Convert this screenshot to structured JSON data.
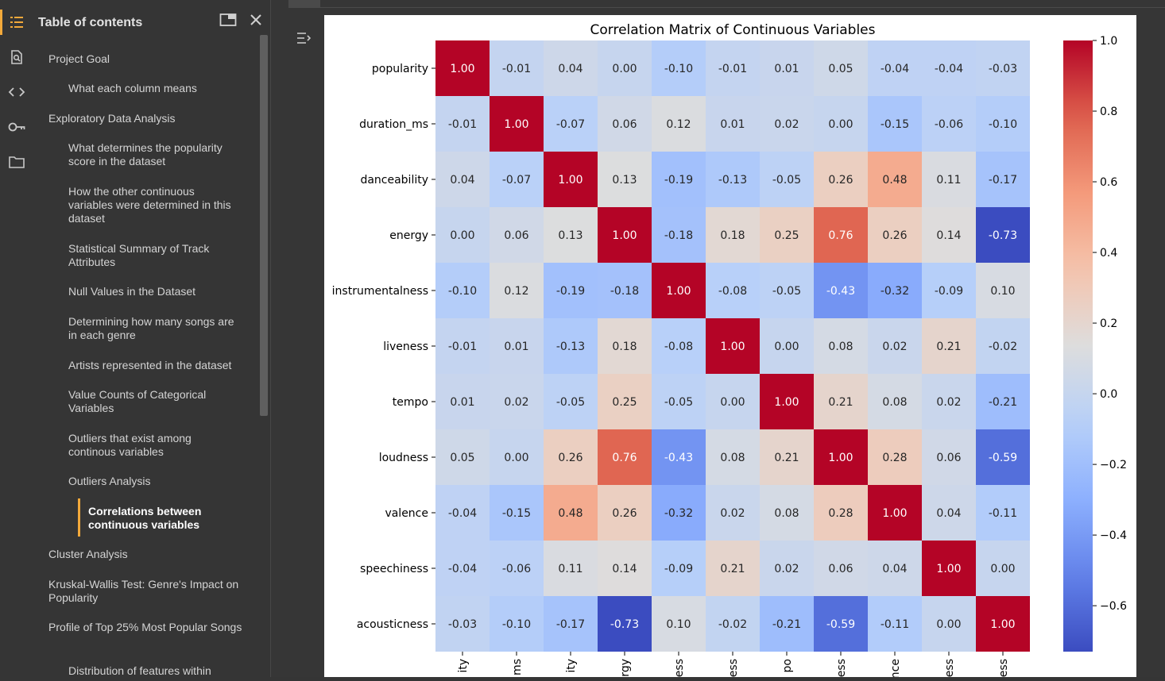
{
  "sidebar_icons": [
    {
      "icon": "toc-list-icon",
      "active": true,
      "color": "#f2a93b"
    },
    {
      "icon": "find-icon"
    },
    {
      "icon": "code-snippets-icon"
    },
    {
      "icon": "key-icon"
    },
    {
      "icon": "folder-icon"
    }
  ],
  "toc": {
    "title": "Table of contents",
    "items": [
      {
        "label": "Project Goal",
        "level": 1
      },
      {
        "label": "What each column means",
        "level": 2
      },
      {
        "label": "Exploratory Data Analysis",
        "level": 1
      },
      {
        "label": "What determines the popularity score in the dataset",
        "level": 2
      },
      {
        "label": "How the other continuous variables were determined in this dataset",
        "level": 2
      },
      {
        "label": "Statistical Summary of Track Attributes",
        "level": 2
      },
      {
        "label": "Null Values in the Dataset",
        "level": 2
      },
      {
        "label": "Determining how many songs are in each genre",
        "level": 2
      },
      {
        "label": "Artists represented in the dataset",
        "level": 2
      },
      {
        "label": "Value Counts of Categorical Variables",
        "level": 2
      },
      {
        "label": "Outliers that exist among continous variables",
        "level": 2
      },
      {
        "label": "Outliers Analysis",
        "level": 2
      },
      {
        "label": "Correlations between continuous variables",
        "level": 3,
        "active": true
      },
      {
        "label": "Cluster Analysis",
        "level": 1
      },
      {
        "label": "Kruskal-Wallis Test: Genre's Impact on Popularity",
        "level": 1
      },
      {
        "label": "Profile of Top 25% Most Popular Songs",
        "level": 1
      },
      {
        "label": "Distribution of features within",
        "level": 2
      }
    ]
  },
  "chart_data": {
    "type": "heatmap",
    "title": "Correlation Matrix of Continuous Variables",
    "rows": [
      "popularity",
      "duration_ms",
      "danceability",
      "energy",
      "instrumentalness",
      "liveness",
      "tempo",
      "loudness",
      "valence",
      "speechiness",
      "acousticness"
    ],
    "x_tick_labels": [
      "ity",
      "ms",
      "ity",
      "rgy",
      "ess",
      "ess",
      "po",
      "ess",
      "nce",
      "ess",
      "ess"
    ],
    "values": [
      [
        1.0,
        -0.01,
        0.04,
        0.0,
        -0.1,
        -0.01,
        0.01,
        0.05,
        -0.04,
        -0.04,
        -0.03
      ],
      [
        -0.01,
        1.0,
        -0.07,
        0.06,
        0.12,
        0.01,
        0.02,
        -0.0,
        -0.15,
        -0.06,
        -0.1
      ],
      [
        0.04,
        -0.07,
        1.0,
        0.13,
        -0.19,
        -0.13,
        -0.05,
        0.26,
        0.48,
        0.11,
        -0.17
      ],
      [
        0.0,
        0.06,
        0.13,
        1.0,
        -0.18,
        0.18,
        0.25,
        0.76,
        0.26,
        0.14,
        -0.73
      ],
      [
        -0.1,
        0.12,
        -0.19,
        -0.18,
        1.0,
        -0.08,
        -0.05,
        -0.43,
        -0.32,
        -0.09,
        0.1
      ],
      [
        -0.01,
        0.01,
        -0.13,
        0.18,
        -0.08,
        1.0,
        0.0,
        0.08,
        0.02,
        0.21,
        -0.02
      ],
      [
        0.01,
        0.02,
        -0.05,
        0.25,
        -0.05,
        0.0,
        1.0,
        0.21,
        0.08,
        0.02,
        -0.21
      ],
      [
        0.05,
        -0.0,
        0.26,
        0.76,
        -0.43,
        0.08,
        0.21,
        1.0,
        0.28,
        0.06,
        -0.59
      ],
      [
        -0.04,
        -0.15,
        0.48,
        0.26,
        -0.32,
        0.02,
        0.08,
        0.28,
        1.0,
        0.04,
        -0.11
      ],
      [
        -0.04,
        -0.06,
        0.11,
        0.14,
        -0.09,
        0.21,
        0.02,
        0.06,
        0.04,
        1.0,
        -0.0
      ],
      [
        -0.03,
        -0.1,
        -0.17,
        -0.73,
        0.1,
        -0.02,
        -0.21,
        -0.59,
        -0.11,
        -0.0,
        1.0
      ]
    ],
    "vmin": -0.73,
    "vmax": 1.0,
    "colormap": "coolwarm",
    "colorbar_ticks": [
      "1.0",
      "0.8",
      "0.6",
      "0.4",
      "0.2",
      "0.0",
      "−0.2",
      "−0.4",
      "−0.6"
    ],
    "colorbar_tick_values": [
      1.0,
      0.8,
      0.6,
      0.4,
      0.2,
      0.0,
      -0.2,
      -0.4,
      -0.6
    ]
  }
}
